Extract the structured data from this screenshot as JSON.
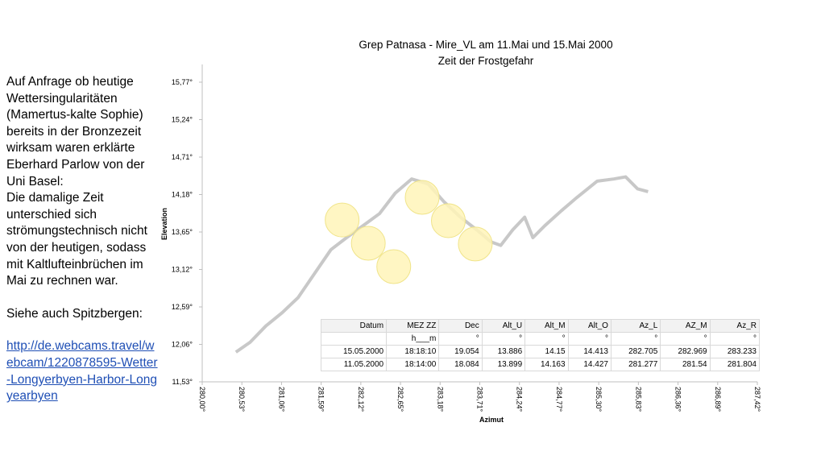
{
  "text": {
    "paragraphs": [
      "Auf Anfrage ob heutige Wettersingularitäten (Mamertus-kalte Sophie) bereits in der Bronzezeit wirksam waren erklärte Eberhard Parlow von der Uni Basel:",
      "Die damalige Zeit unterschied sich strömungstechnisch nicht von der heutigen, sodass mit Kaltlufteinbrüchen im Mai zu rechnen war.",
      "Siehe auch Spitzbergen:"
    ],
    "link": "http://de.webcams.travel/webcam/1220878595-Wetter-Longyerbyen-Harbor-Longyearbyen"
  },
  "chart_data": {
    "type": "line",
    "title": "Grep Patnasa - Mire_VL  am 11.Mai und 15.Mai 2000",
    "subtitle": "Zeit der Frostgefahr",
    "x_label": "Azimut",
    "y_label": "Elevation",
    "xlim": [
      280.0,
      287.42
    ],
    "ylim": [
      11.53,
      15.77
    ],
    "xticks": [
      {
        "value": 280.0,
        "label": "280,00°"
      },
      {
        "value": 280.53,
        "label": "280,53°"
      },
      {
        "value": 281.06,
        "label": "281,06°"
      },
      {
        "value": 281.59,
        "label": "281,59°"
      },
      {
        "value": 282.12,
        "label": "282,12°"
      },
      {
        "value": 282.65,
        "label": "282,65°"
      },
      {
        "value": 283.18,
        "label": "283,18°"
      },
      {
        "value": 283.71,
        "label": "283,71°"
      },
      {
        "value": 284.24,
        "label": "284,24°"
      },
      {
        "value": 284.77,
        "label": "284,77°"
      },
      {
        "value": 285.3,
        "label": "285,30°"
      },
      {
        "value": 285.83,
        "label": "285,83°"
      },
      {
        "value": 286.36,
        "label": "286,36°"
      },
      {
        "value": 286.89,
        "label": "286,89°"
      },
      {
        "value": 287.42,
        "label": "287,42°"
      }
    ],
    "yticks": [
      {
        "value": 11.53,
        "label": "11,53°"
      },
      {
        "value": 12.06,
        "label": "12,06°"
      },
      {
        "value": 12.59,
        "label": "12,59°"
      },
      {
        "value": 13.12,
        "label": "13,12°"
      },
      {
        "value": 13.65,
        "label": "13,65°"
      },
      {
        "value": 14.18,
        "label": "14,18°"
      },
      {
        "value": 14.71,
        "label": "14,71°"
      },
      {
        "value": 15.24,
        "label": "15,24°"
      },
      {
        "value": 15.77,
        "label": "15,77°"
      }
    ],
    "series": [
      {
        "type": "line",
        "color": "#c8c8c8",
        "x": [
          280.45,
          280.64,
          280.85,
          281.07,
          281.28,
          281.5,
          281.72,
          281.93,
          282.15,
          282.37,
          282.58,
          282.8,
          283.02,
          283.23,
          283.45,
          283.67,
          283.86,
          283.99,
          284.15,
          284.31,
          284.42,
          284.58,
          284.8,
          285.01,
          285.28,
          285.5,
          285.66,
          285.82,
          285.96
        ],
        "values": [
          11.95,
          12.09,
          12.32,
          12.51,
          12.72,
          13.06,
          13.4,
          13.57,
          13.74,
          13.91,
          14.2,
          14.4,
          14.33,
          14.08,
          13.86,
          13.68,
          13.51,
          13.46,
          13.68,
          13.86,
          13.57,
          13.74,
          13.95,
          14.14,
          14.37,
          14.4,
          14.43,
          14.26,
          14.22
        ]
      },
      {
        "type": "scatter",
        "color": "#fff5b8",
        "x": [
          281.87,
          282.22,
          282.56,
          282.94,
          283.29,
          283.65
        ],
        "values": [
          13.82,
          13.49,
          13.16,
          14.14,
          13.81,
          13.48
        ]
      }
    ]
  },
  "table": {
    "rows": [
      [
        "Datum",
        "MEZ ZZ",
        "Dec",
        "Alt_U",
        "Alt_M",
        "Alt_O",
        "Az_L",
        "AZ_M",
        "Az_R"
      ],
      [
        "",
        "h___m",
        "°",
        "°",
        "°",
        "°",
        "°",
        "°",
        "°"
      ],
      [
        "15.05.2000",
        "18:18:10",
        19.054,
        13.886,
        14.15,
        14.413,
        282.705,
        282.969,
        283.233
      ],
      [
        "11.05.2000",
        "18:14:00",
        18.084,
        13.899,
        14.163,
        14.427,
        281.277,
        281.54,
        281.804
      ]
    ]
  }
}
